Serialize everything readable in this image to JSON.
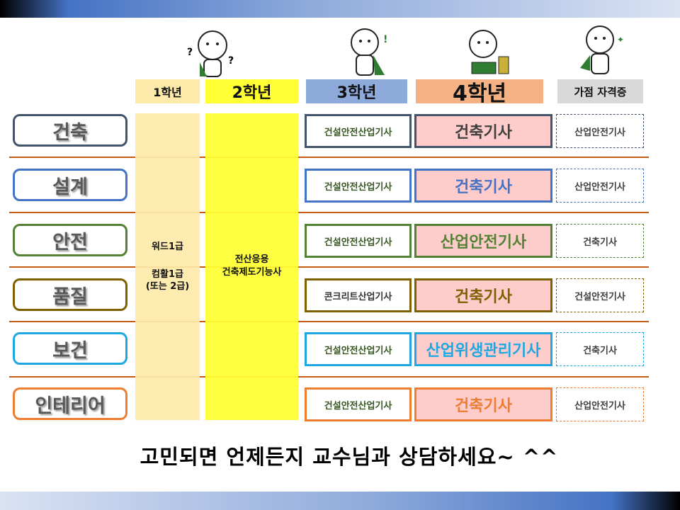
{
  "headers": {
    "y1": "1학년",
    "y2": "2학년",
    "y3": "3학년",
    "y4": "4학년",
    "extra": "가점 자격증"
  },
  "header_colors": {
    "y1": "#fde9a9",
    "y2": "#ffff33",
    "y3": "#8eaadb",
    "y4": "#f4b183",
    "extra": "#d9d9d9"
  },
  "year1_text": {
    "line1": "워드1급",
    "line2": "컴활1급",
    "line3": "(또는 2급)"
  },
  "year2_text": {
    "line1": "전산응용",
    "line2": "건축제도기능사"
  },
  "rows": [
    {
      "label": "건축",
      "y3": "건설안전산업기사",
      "y4": "건축기사",
      "extra": "산업안전기사",
      "color": "#44546a",
      "y4_text_color": "#404040"
    },
    {
      "label": "설계",
      "y3": "건설안전산업기사",
      "y4": "건축기사",
      "extra": "산업안전기사",
      "color": "#4472c4",
      "y4_text_color": "#4472c4"
    },
    {
      "label": "안전",
      "y3": "건설안전산업기사",
      "y4": "산업안전기사",
      "extra": "건축기사",
      "color": "#548235",
      "y4_text_color": "#548235"
    },
    {
      "label": "품질",
      "y3": "콘크리트산업기사",
      "y4": "건축기사",
      "extra": "건설안전기사",
      "color": "#7f6000",
      "y4_text_color": "#7f6000"
    },
    {
      "label": "보건",
      "y3": "건설안전산업기사",
      "y4": "산업위생관리기사",
      "extra": "건축기사",
      "color": "#1ea7e1",
      "y4_text_color": "#1ea7e1"
    },
    {
      "label": "인테리어",
      "y3": "건설안전산업기사",
      "y4": "건축기사",
      "extra": "산업안전기사",
      "color": "#ed7d31",
      "y4_text_color": "#ed7d31"
    }
  ],
  "footer": "고민되면 언제든지 교수님과 상담하세요~ ^^",
  "icons": [
    "tiger-thinking-icon",
    "tiger-surprised-icon",
    "tiger-laptop-icon",
    "tiger-thumbsup-icon"
  ]
}
